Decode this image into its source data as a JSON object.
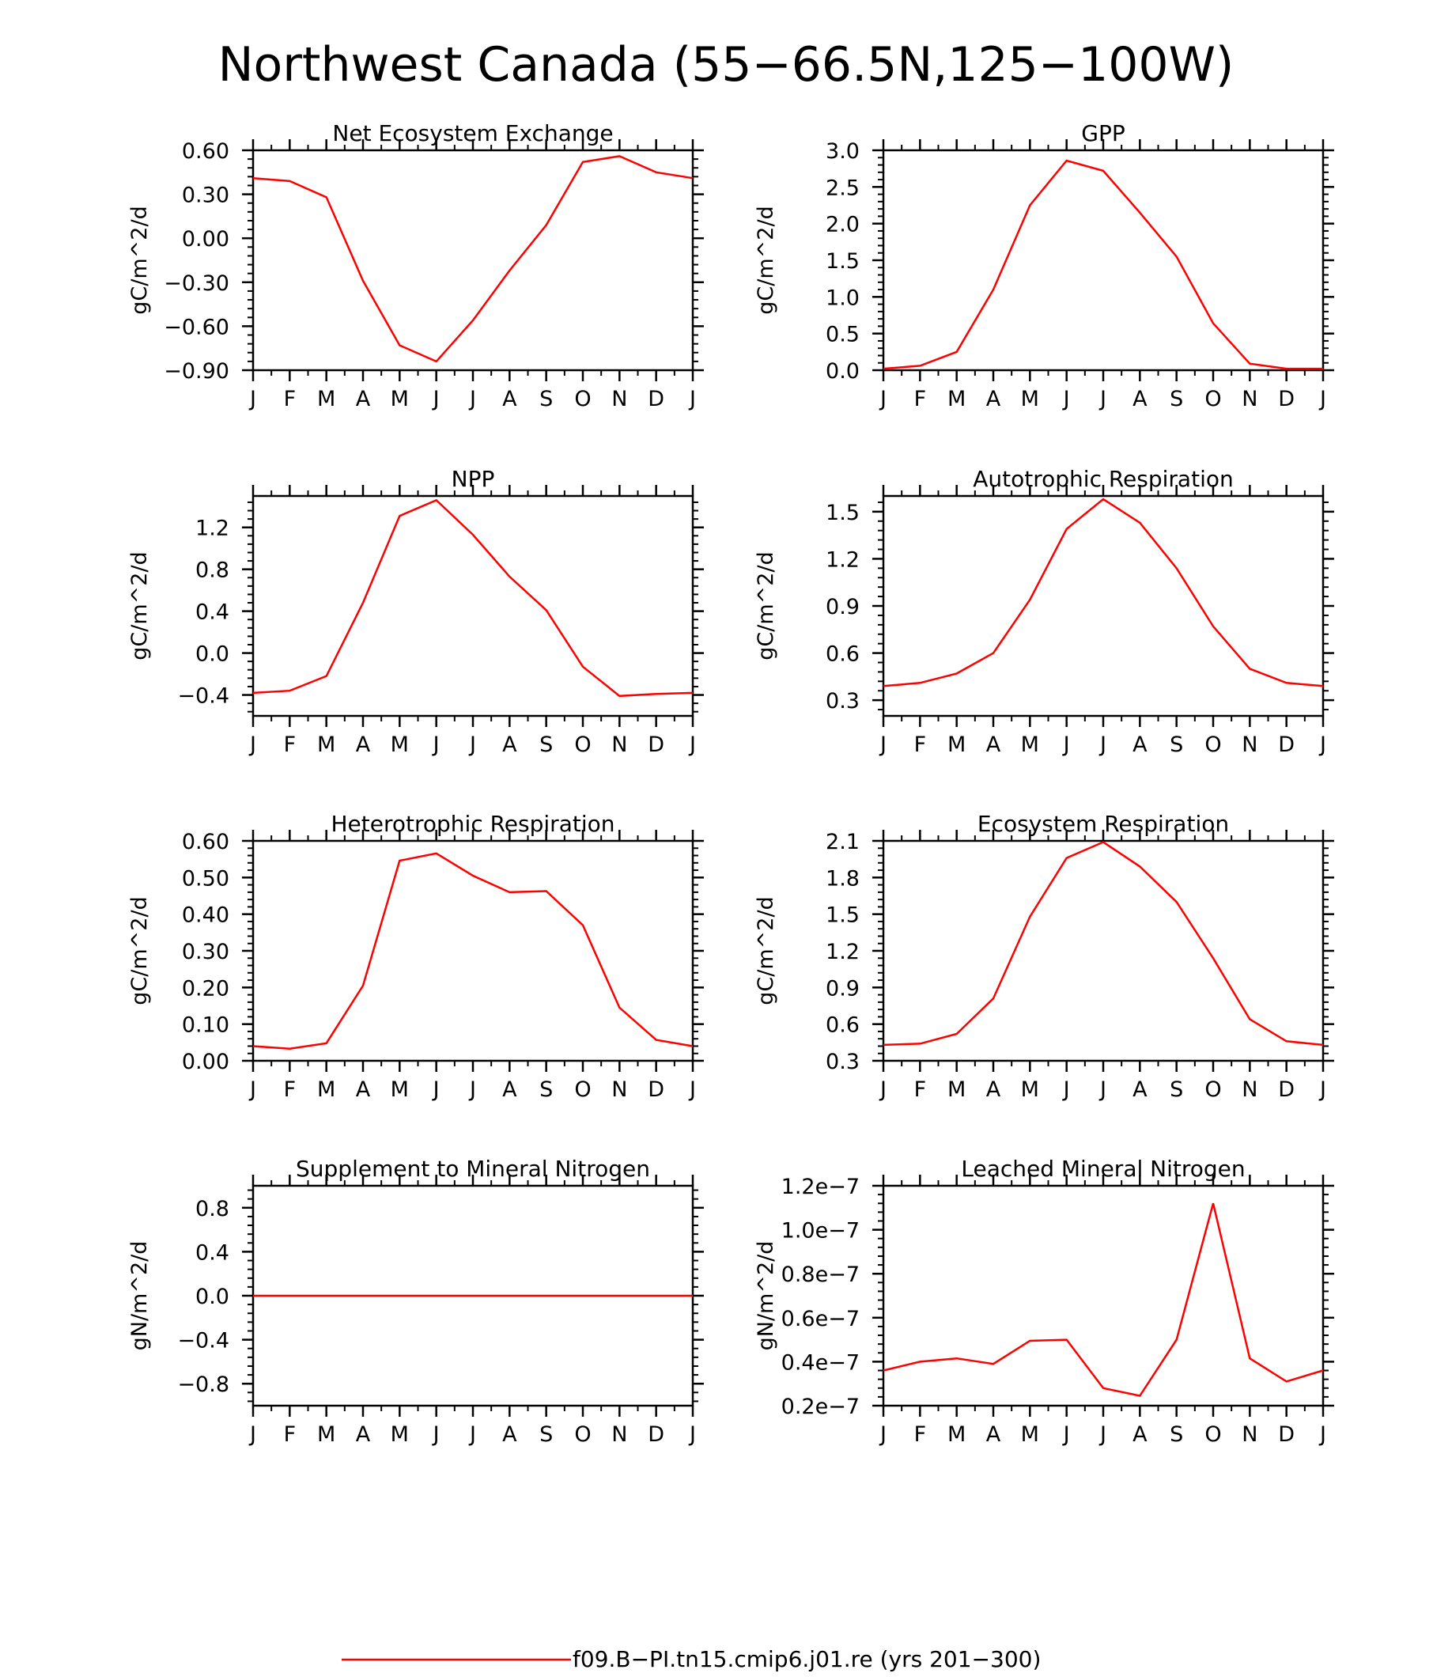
{
  "title": "Northwest Canada (55−66.5N,125−100W)",
  "colors": {
    "series": "#ff0000",
    "axis": "#000000"
  },
  "legend": {
    "label": "f09.B−PI.tn15.cmip6.j01.re (yrs 201−300)",
    "placement": "bottom-center"
  },
  "chart_data": [
    {
      "type": "line",
      "title": "Net Ecosystem Exchange",
      "ylabel": "gC/m^2/d",
      "categories": [
        "J",
        "F",
        "M",
        "A",
        "M",
        "J",
        "J",
        "A",
        "S",
        "O",
        "N",
        "D",
        "J"
      ],
      "ylim": [
        -0.9,
        0.6
      ],
      "yticks": [
        -0.9,
        -0.6,
        -0.3,
        0.0,
        0.3,
        0.6
      ],
      "yticklabels": [
        "−0.90",
        "−0.60",
        "−0.30",
        "0.00",
        "0.30",
        "0.60"
      ],
      "series": [
        {
          "values": [
            0.41,
            0.39,
            0.28,
            -0.29,
            -0.73,
            -0.84,
            -0.56,
            -0.22,
            0.09,
            0.52,
            0.56,
            0.45,
            0.41
          ]
        }
      ]
    },
    {
      "type": "line",
      "title": "GPP",
      "ylabel": "gC/m^2/d",
      "categories": [
        "J",
        "F",
        "M",
        "A",
        "M",
        "J",
        "J",
        "A",
        "S",
        "O",
        "N",
        "D",
        "J"
      ],
      "ylim": [
        0,
        3.0
      ],
      "yticks": [
        0,
        0.5,
        1.0,
        1.5,
        2.0,
        2.5,
        3.0
      ],
      "yticklabels": [
        "0.0",
        "0.5",
        "1.0",
        "1.5",
        "2.0",
        "2.5",
        "3.0"
      ],
      "series": [
        {
          "values": [
            0.02,
            0.06,
            0.25,
            1.1,
            2.25,
            2.86,
            2.72,
            2.15,
            1.55,
            0.64,
            0.09,
            0.02,
            0.02
          ]
        }
      ]
    },
    {
      "type": "line",
      "title": "NPP",
      "ylabel": "gC/m^2/d",
      "categories": [
        "J",
        "F",
        "M",
        "A",
        "M",
        "J",
        "J",
        "A",
        "S",
        "O",
        "N",
        "D",
        "J"
      ],
      "ylim": [
        -0.6,
        1.5
      ],
      "yticks": [
        -0.4,
        0.0,
        0.4,
        0.8,
        1.2
      ],
      "yticklabels": [
        "−0.4",
        "0.0",
        "0.4",
        "0.8",
        "1.2"
      ],
      "series": [
        {
          "values": [
            -0.38,
            -0.36,
            -0.22,
            0.48,
            1.31,
            1.46,
            1.13,
            0.73,
            0.41,
            -0.13,
            -0.41,
            -0.39,
            -0.38
          ]
        }
      ]
    },
    {
      "type": "line",
      "title": "Autotrophic Respiration",
      "ylabel": "gC/m^2/d",
      "categories": [
        "J",
        "F",
        "M",
        "A",
        "M",
        "J",
        "J",
        "A",
        "S",
        "O",
        "N",
        "D",
        "J"
      ],
      "ylim": [
        0.2,
        1.6
      ],
      "yticks": [
        0.3,
        0.6,
        0.9,
        1.2,
        1.5
      ],
      "yticklabels": [
        "0.3",
        "0.6",
        "0.9",
        "1.2",
        "1.5"
      ],
      "series": [
        {
          "values": [
            0.39,
            0.41,
            0.47,
            0.6,
            0.94,
            1.39,
            1.58,
            1.43,
            1.14,
            0.77,
            0.5,
            0.41,
            0.39
          ]
        }
      ]
    },
    {
      "type": "line",
      "title": "Heterotrophic Respiration",
      "ylabel": "gC/m^2/d",
      "categories": [
        "J",
        "F",
        "M",
        "A",
        "M",
        "J",
        "J",
        "A",
        "S",
        "O",
        "N",
        "D",
        "J"
      ],
      "ylim": [
        0,
        0.6
      ],
      "yticks": [
        0,
        0.1,
        0.2,
        0.3,
        0.4,
        0.5,
        0.6
      ],
      "yticklabels": [
        "0.00",
        "0.10",
        "0.20",
        "0.30",
        "0.40",
        "0.50",
        "0.60"
      ],
      "series": [
        {
          "values": [
            0.04,
            0.033,
            0.048,
            0.205,
            0.546,
            0.566,
            0.505,
            0.46,
            0.463,
            0.37,
            0.145,
            0.057,
            0.04
          ]
        }
      ]
    },
    {
      "type": "line",
      "title": "Ecosystem Respiration",
      "ylabel": "gC/m^2/d",
      "categories": [
        "J",
        "F",
        "M",
        "A",
        "M",
        "J",
        "J",
        "A",
        "S",
        "O",
        "N",
        "D",
        "J"
      ],
      "ylim": [
        0.3,
        2.1
      ],
      "yticks": [
        0.3,
        0.6,
        0.9,
        1.2,
        1.5,
        1.8,
        2.1
      ],
      "yticklabels": [
        "0.3",
        "0.6",
        "0.9",
        "1.2",
        "1.5",
        "1.8",
        "2.1"
      ],
      "series": [
        {
          "values": [
            0.43,
            0.44,
            0.52,
            0.81,
            1.48,
            1.96,
            2.09,
            1.89,
            1.6,
            1.14,
            0.64,
            0.46,
            0.43
          ]
        }
      ]
    },
    {
      "type": "line",
      "title": "Supplement to Mineral Nitrogen",
      "ylabel": "gN/m^2/d",
      "categories": [
        "J",
        "F",
        "M",
        "A",
        "M",
        "J",
        "J",
        "A",
        "S",
        "O",
        "N",
        "D",
        "J"
      ],
      "ylim": [
        -1.0,
        1.0
      ],
      "yticks": [
        -0.8,
        -0.4,
        0.0,
        0.4,
        0.8
      ],
      "yticklabels": [
        "−0.8",
        "−0.4",
        "0.0",
        "0.4",
        "0.8"
      ],
      "series": [
        {
          "values": [
            0,
            0,
            0,
            0,
            0,
            0,
            0,
            0,
            0,
            0,
            0,
            0,
            0
          ]
        }
      ]
    },
    {
      "type": "line",
      "title": "Leached Mineral Nitrogen",
      "ylabel": "gN/m^2/d",
      "categories": [
        "J",
        "F",
        "M",
        "A",
        "M",
        "J",
        "J",
        "A",
        "S",
        "O",
        "N",
        "D",
        "J"
      ],
      "ylim": [
        2e-08,
        1.2e-07
      ],
      "yticks": [
        2e-08,
        4e-08,
        6e-08,
        8e-08,
        1e-07,
        1.2e-07
      ],
      "yticklabels": [
        "0.2e−7",
        "0.4e−7",
        "0.6e−7",
        "0.8e−7",
        "1.0e−7",
        "1.2e−7"
      ],
      "series": [
        {
          "values": [
            3.6e-08,
            4e-08,
            4.15e-08,
            3.9e-08,
            4.95e-08,
            5e-08,
            2.8e-08,
            2.45e-08,
            5e-08,
            1.12e-07,
            4.15e-08,
            3.1e-08,
            3.6e-08
          ]
        }
      ]
    }
  ]
}
